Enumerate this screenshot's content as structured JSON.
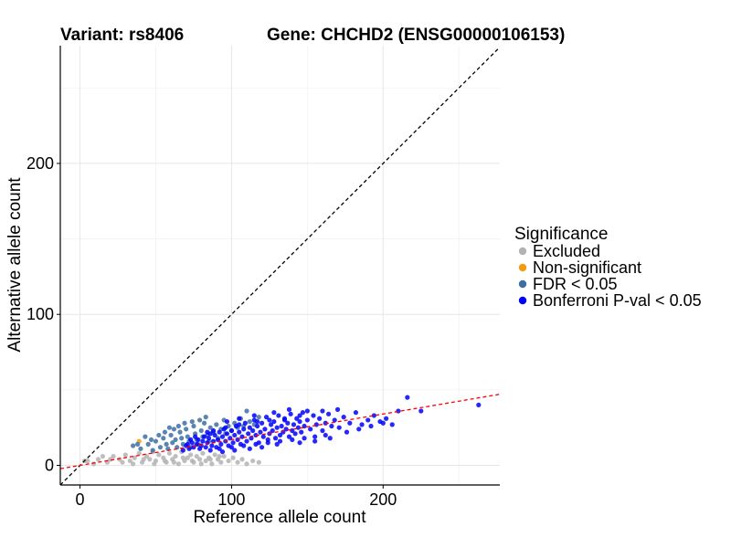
{
  "chart_data": {
    "type": "scatter",
    "title_left": "Variant: rs8406",
    "title_right": "Gene: CHCHD2 (ENSG00000106153)",
    "xlabel": "Reference allele count",
    "ylabel": "Alternative allele count",
    "xlim": [
      -13,
      277
    ],
    "ylim": [
      -13,
      278
    ],
    "xticks": [
      0,
      100,
      200
    ],
    "yticks": [
      0,
      100,
      200
    ],
    "grid": true,
    "legend": {
      "title": "Significance",
      "placement": "right",
      "entries": [
        {
          "label": "Excluded",
          "color": "#b3b3b3"
        },
        {
          "label": "Non-significant",
          "color": "#f39c12"
        },
        {
          "label": "FDR < 0.05",
          "color": "#3d6fa3"
        },
        {
          "label": "Bonferroni P-val < 0.05",
          "color": "#0000ff"
        }
      ]
    },
    "reference_lines": [
      {
        "name": "identity",
        "style": "dashed",
        "color": "#000000",
        "slope": 1,
        "intercept": 0
      },
      {
        "name": "fit",
        "style": "dashed",
        "color": "#ff0000",
        "slope": 0.17,
        "intercept": 0
      }
    ],
    "series": [
      {
        "name": "Excluded",
        "color": "#b3b3b3",
        "points": [
          [
            5,
            3
          ],
          [
            12,
            4
          ],
          [
            18,
            2
          ],
          [
            22,
            6
          ],
          [
            26,
            4
          ],
          [
            30,
            7
          ],
          [
            33,
            3
          ],
          [
            36,
            5
          ],
          [
            39,
            8
          ],
          [
            41,
            2
          ],
          [
            44,
            6
          ],
          [
            46,
            4
          ],
          [
            48,
            9
          ],
          [
            50,
            3
          ],
          [
            52,
            7
          ],
          [
            55,
            5
          ],
          [
            57,
            2
          ],
          [
            59,
            8
          ],
          [
            61,
            4
          ],
          [
            63,
            6
          ],
          [
            65,
            1
          ],
          [
            67,
            9
          ],
          [
            69,
            3
          ],
          [
            71,
            5
          ],
          [
            73,
            7
          ],
          [
            75,
            2
          ],
          [
            77,
            6
          ],
          [
            79,
            4
          ],
          [
            81,
            8
          ],
          [
            83,
            3
          ],
          [
            85,
            5
          ],
          [
            87,
            1
          ],
          [
            89,
            7
          ],
          [
            91,
            4
          ],
          [
            93,
            2
          ],
          [
            95,
            6
          ],
          [
            98,
            3
          ],
          [
            101,
            5
          ],
          [
            104,
            2
          ],
          [
            107,
            4
          ],
          [
            110,
            1
          ],
          [
            114,
            3
          ],
          [
            118,
            2
          ],
          [
            28,
            2
          ],
          [
            35,
            1
          ],
          [
            42,
            4
          ],
          [
            49,
            1
          ],
          [
            56,
            3
          ],
          [
            62,
            2
          ],
          [
            68,
            5
          ],
          [
            74,
            3
          ],
          [
            80,
            1
          ],
          [
            86,
            4
          ],
          [
            92,
            6
          ],
          [
            20,
            4
          ],
          [
            15,
            6
          ],
          [
            9,
            1
          ],
          [
            3,
            3
          ]
        ]
      },
      {
        "name": "Non-significant",
        "color": "#f39c12",
        "points": [
          [
            39,
            16
          ]
        ]
      },
      {
        "name": "FDR < 0.05",
        "color": "#3d6fa3",
        "points": [
          [
            35,
            13
          ],
          [
            40,
            11
          ],
          [
            45,
            14
          ],
          [
            48,
            10
          ],
          [
            50,
            16
          ],
          [
            53,
            12
          ],
          [
            55,
            18
          ],
          [
            57,
            14
          ],
          [
            58,
            11
          ],
          [
            60,
            20
          ],
          [
            61,
            15
          ],
          [
            63,
            17
          ],
          [
            64,
            12
          ],
          [
            66,
            22
          ],
          [
            67,
            18
          ],
          [
            68,
            14
          ],
          [
            70,
            24
          ],
          [
            71,
            19
          ],
          [
            72,
            16
          ],
          [
            73,
            12
          ],
          [
            75,
            26
          ],
          [
            76,
            21
          ],
          [
            77,
            17
          ],
          [
            78,
            14
          ],
          [
            80,
            23
          ],
          [
            81,
            19
          ],
          [
            82,
            28
          ],
          [
            84,
            20
          ],
          [
            85,
            16
          ],
          [
            86,
            25
          ],
          [
            88,
            22
          ],
          [
            90,
            27
          ],
          [
            91,
            18
          ],
          [
            93,
            24
          ],
          [
            95,
            30
          ],
          [
            96,
            21
          ],
          [
            98,
            26
          ],
          [
            100,
            23
          ],
          [
            102,
            28
          ],
          [
            104,
            25
          ],
          [
            106,
            31
          ],
          [
            108,
            26
          ],
          [
            110,
            36
          ],
          [
            112,
            29
          ],
          [
            115,
            27
          ],
          [
            118,
            32
          ],
          [
            62,
            24
          ],
          [
            65,
            26
          ],
          [
            69,
            28
          ],
          [
            74,
            29
          ],
          [
            79,
            30
          ],
          [
            83,
            32
          ],
          [
            52,
            20
          ],
          [
            47,
            17
          ],
          [
            43,
            19
          ],
          [
            38,
            14
          ],
          [
            56,
            22
          ],
          [
            59,
            25
          ]
        ]
      },
      {
        "name": "Bonferroni P-val < 0.05",
        "color": "#0000ff",
        "points": [
          [
            68,
            10
          ],
          [
            70,
            13
          ],
          [
            72,
            11
          ],
          [
            74,
            15
          ],
          [
            75,
            12
          ],
          [
            77,
            14
          ],
          [
            78,
            17
          ],
          [
            79,
            11
          ],
          [
            80,
            13
          ],
          [
            81,
            16
          ],
          [
            82,
            19
          ],
          [
            83,
            12
          ],
          [
            84,
            15
          ],
          [
            85,
            18
          ],
          [
            86,
            21
          ],
          [
            87,
            13
          ],
          [
            88,
            16
          ],
          [
            89,
            20
          ],
          [
            90,
            12
          ],
          [
            91,
            17
          ],
          [
            92,
            22
          ],
          [
            93,
            14
          ],
          [
            94,
            19
          ],
          [
            95,
            24
          ],
          [
            96,
            16
          ],
          [
            97,
            21
          ],
          [
            98,
            13
          ],
          [
            99,
            18
          ],
          [
            100,
            23
          ],
          [
            101,
            15
          ],
          [
            102,
            20
          ],
          [
            103,
            26
          ],
          [
            104,
            17
          ],
          [
            105,
            22
          ],
          [
            106,
            14
          ],
          [
            107,
            19
          ],
          [
            108,
            24
          ],
          [
            109,
            28
          ],
          [
            110,
            16
          ],
          [
            111,
            21
          ],
          [
            112,
            25
          ],
          [
            113,
            18
          ],
          [
            114,
            23
          ],
          [
            115,
            30
          ],
          [
            116,
            20
          ],
          [
            117,
            26
          ],
          [
            118,
            15
          ],
          [
            119,
            22
          ],
          [
            120,
            28
          ],
          [
            121,
            19
          ],
          [
            122,
            24
          ],
          [
            123,
            32
          ],
          [
            124,
            17
          ],
          [
            125,
            21
          ],
          [
            126,
            27
          ],
          [
            127,
            23
          ],
          [
            128,
            29
          ],
          [
            129,
            18
          ],
          [
            130,
            25
          ],
          [
            131,
            33
          ],
          [
            132,
            20
          ],
          [
            133,
            26
          ],
          [
            134,
            22
          ],
          [
            135,
            30
          ],
          [
            136,
            24
          ],
          [
            137,
            28
          ],
          [
            138,
            19
          ],
          [
            139,
            34
          ],
          [
            140,
            23
          ],
          [
            141,
            27
          ],
          [
            142,
            21
          ],
          [
            143,
            31
          ],
          [
            144,
            25
          ],
          [
            145,
            29
          ],
          [
            146,
            22
          ],
          [
            147,
            35
          ],
          [
            148,
            26
          ],
          [
            150,
            30
          ],
          [
            152,
            24
          ],
          [
            154,
            33
          ],
          [
            156,
            27
          ],
          [
            158,
            31
          ],
          [
            160,
            23
          ],
          [
            162,
            28
          ],
          [
            164,
            34
          ],
          [
            166,
            26
          ],
          [
            168,
            30
          ],
          [
            171,
            25
          ],
          [
            174,
            32
          ],
          [
            178,
            28
          ],
          [
            182,
            35
          ],
          [
            186,
            27
          ],
          [
            190,
            30
          ],
          [
            194,
            33
          ],
          [
            198,
            29
          ],
          [
            202,
            31
          ],
          [
            206,
            27
          ],
          [
            210,
            36
          ],
          [
            216,
            45
          ],
          [
            225,
            36
          ],
          [
            263,
            40
          ],
          [
            170,
            37
          ],
          [
            160,
            36
          ],
          [
            145,
            33
          ],
          [
            135,
            31
          ],
          [
            125,
            30
          ],
          [
            117,
            29
          ],
          [
            105,
            27
          ],
          [
            96,
            25
          ],
          [
            88,
            23
          ],
          [
            84,
            22
          ],
          [
            76,
            19
          ],
          [
            73,
            17
          ],
          [
            71,
            14
          ],
          [
            92,
            11
          ],
          [
            100,
            12
          ],
          [
            108,
            13
          ],
          [
            116,
            14
          ],
          [
            124,
            15
          ],
          [
            132,
            16
          ],
          [
            140,
            17
          ],
          [
            148,
            18
          ],
          [
            155,
            19
          ],
          [
            162,
            20
          ],
          [
            128,
            35
          ],
          [
            138,
            37
          ],
          [
            150,
            36
          ],
          [
            115,
            33
          ],
          [
            105,
            31
          ],
          [
            97,
            29
          ],
          [
            120,
            12
          ],
          [
            130,
            14
          ],
          [
            112,
            11
          ],
          [
            102,
            10
          ],
          [
            86,
            10
          ],
          [
            94,
            9
          ],
          [
            176,
            22
          ],
          [
            184,
            24
          ],
          [
            192,
            26
          ],
          [
            200,
            28
          ],
          [
            155,
            16
          ],
          [
            165,
            18
          ],
          [
            145,
            15
          ]
        ]
      }
    ]
  }
}
